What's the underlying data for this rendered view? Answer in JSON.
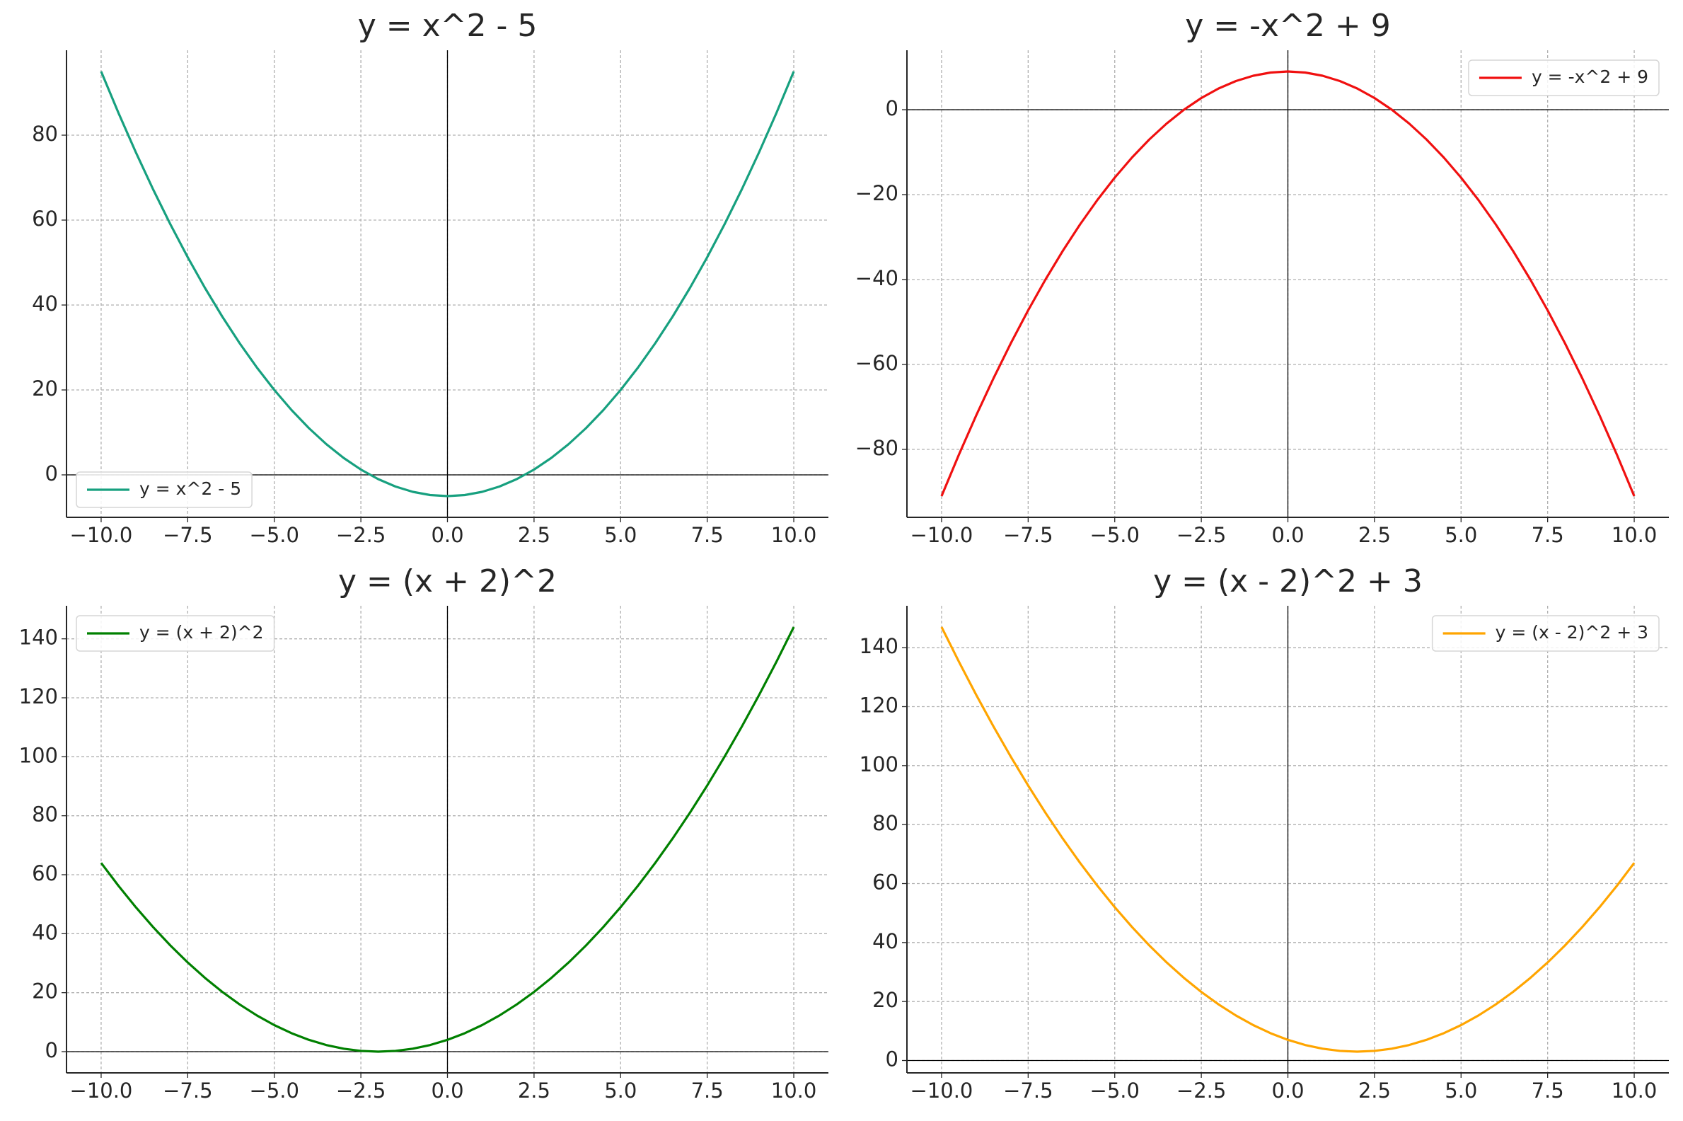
{
  "chart_data": [
    {
      "type": "line",
      "title": "y = x^2 - 5",
      "x": [
        -10,
        -9.5,
        -9,
        -8.5,
        -8,
        -7.5,
        -7,
        -6.5,
        -6,
        -5.5,
        -5,
        -4.5,
        -4,
        -3.5,
        -3,
        -2.5,
        -2,
        -1.5,
        -1,
        -0.5,
        0,
        0.5,
        1,
        1.5,
        2,
        2.5,
        3,
        3.5,
        4,
        4.5,
        5,
        5.5,
        6,
        6.5,
        7,
        7.5,
        8,
        8.5,
        9,
        9.5,
        10
      ],
      "series": [
        {
          "name": "y = x^2 - 5",
          "color": "#17a07f",
          "values": [
            95,
            85.25,
            76,
            67.25,
            59,
            51.25,
            44,
            37.25,
            31,
            25.25,
            20,
            15.25,
            11,
            7.25,
            4,
            1.25,
            -1,
            -2.75,
            -4,
            -4.75,
            -5,
            -4.75,
            -4,
            -2.75,
            -1,
            1.25,
            4,
            7.25,
            11,
            15.25,
            20,
            25.25,
            31,
            37.25,
            44,
            51.25,
            59,
            67.25,
            76,
            85.25,
            95
          ]
        }
      ],
      "xlim": [
        -11,
        11
      ],
      "ylim": [
        -10,
        100
      ],
      "xticks": [
        {
          "value": -10,
          "label": "−10.0"
        },
        {
          "value": -7.5,
          "label": "−7.5"
        },
        {
          "value": -5,
          "label": "−5.0"
        },
        {
          "value": -2.5,
          "label": "−2.5"
        },
        {
          "value": 0,
          "label": "0.0"
        },
        2.5,
        {
          "value": 5,
          "label": "5.0"
        },
        7.5,
        {
          "value": 10,
          "label": "10.0"
        }
      ],
      "yticks": [
        0,
        20,
        40,
        60,
        80
      ],
      "grid": true,
      "legend": "lower left"
    },
    {
      "type": "line",
      "title": "y = -x^2 + 9",
      "x": [
        -10,
        -9.5,
        -9,
        -8.5,
        -8,
        -7.5,
        -7,
        -6.5,
        -6,
        -5.5,
        -5,
        -4.5,
        -4,
        -3.5,
        -3,
        -2.5,
        -2,
        -1.5,
        -1,
        -0.5,
        0,
        0.5,
        1,
        1.5,
        2,
        2.5,
        3,
        3.5,
        4,
        4.5,
        5,
        5.5,
        6,
        6.5,
        7,
        7.5,
        8,
        8.5,
        9,
        9.5,
        10
      ],
      "series": [
        {
          "name": "y = -x^2 + 9",
          "color": "#f01010",
          "values": [
            -91,
            -81.25,
            -72,
            -63.25,
            -55,
            -47.25,
            -40,
            -33.25,
            -27,
            -21.25,
            -16,
            -11.25,
            -7,
            -3.25,
            0,
            2.75,
            5,
            6.75,
            8,
            8.75,
            9,
            8.75,
            8,
            6.75,
            5,
            2.75,
            0,
            -3.25,
            -7,
            -11.25,
            -16,
            -21.25,
            -27,
            -33.25,
            -40,
            -47.25,
            -55,
            -63.25,
            -72,
            -81.25,
            -91
          ]
        }
      ],
      "xlim": [
        -11,
        11
      ],
      "ylim": [
        -96,
        14
      ],
      "xticks": [
        {
          "value": -10,
          "label": "−10.0"
        },
        {
          "value": -7.5,
          "label": "−7.5"
        },
        {
          "value": -5,
          "label": "−5.0"
        },
        {
          "value": -2.5,
          "label": "−2.5"
        },
        {
          "value": 0,
          "label": "0.0"
        },
        2.5,
        {
          "value": 5,
          "label": "5.0"
        },
        7.5,
        {
          "value": 10,
          "label": "10.0"
        }
      ],
      "yticks": [
        {
          "value": -80,
          "label": "−80"
        },
        {
          "value": -60,
          "label": "−60"
        },
        {
          "value": -40,
          "label": "−40"
        },
        {
          "value": -20,
          "label": "−20"
        },
        0
      ],
      "grid": true,
      "legend": "upper right"
    },
    {
      "type": "line",
      "title": "y = (x + 2)^2",
      "x": [
        -10,
        -9.5,
        -9,
        -8.5,
        -8,
        -7.5,
        -7,
        -6.5,
        -6,
        -5.5,
        -5,
        -4.5,
        -4,
        -3.5,
        -3,
        -2.5,
        -2,
        -1.5,
        -1,
        -0.5,
        0,
        0.5,
        1,
        1.5,
        2,
        2.5,
        3,
        3.5,
        4,
        4.5,
        5,
        5.5,
        6,
        6.5,
        7,
        7.5,
        8,
        8.5,
        9,
        9.5,
        10
      ],
      "series": [
        {
          "name": "y = (x + 2)^2",
          "color": "#008000",
          "values": [
            64,
            56.25,
            49,
            42.25,
            36,
            30.25,
            25,
            20.25,
            16,
            12.25,
            9,
            6.25,
            4,
            2.25,
            1,
            0.25,
            0,
            0.25,
            1,
            2.25,
            4,
            6.25,
            9,
            12.25,
            16,
            20.25,
            25,
            30.25,
            36,
            42.25,
            49,
            56.25,
            64,
            72.25,
            81,
            90.25,
            100,
            110.25,
            121,
            132.25,
            144
          ]
        }
      ],
      "xlim": [
        -11,
        11
      ],
      "ylim": [
        -7.2,
        151.2
      ],
      "xticks": [
        {
          "value": -10,
          "label": "−10.0"
        },
        {
          "value": -7.5,
          "label": "−7.5"
        },
        {
          "value": -5,
          "label": "−5.0"
        },
        {
          "value": -2.5,
          "label": "−2.5"
        },
        {
          "value": 0,
          "label": "0.0"
        },
        2.5,
        {
          "value": 5,
          "label": "5.0"
        },
        7.5,
        {
          "value": 10,
          "label": "10.0"
        }
      ],
      "yticks": [
        0,
        20,
        40,
        60,
        80,
        100,
        120,
        140
      ],
      "grid": true,
      "legend": "upper left"
    },
    {
      "type": "line",
      "title": "y = (x - 2)^2 + 3",
      "x": [
        -10,
        -9.5,
        -9,
        -8.5,
        -8,
        -7.5,
        -7,
        -6.5,
        -6,
        -5.5,
        -5,
        -4.5,
        -4,
        -3.5,
        -3,
        -2.5,
        -2,
        -1.5,
        -1,
        -0.5,
        0,
        0.5,
        1,
        1.5,
        2,
        2.5,
        3,
        3.5,
        4,
        4.5,
        5,
        5.5,
        6,
        6.5,
        7,
        7.5,
        8,
        8.5,
        9,
        9.5,
        10
      ],
      "series": [
        {
          "name": "y = (x - 2)^2 + 3",
          "color": "#ffa500",
          "values": [
            147,
            135.25,
            124,
            113.25,
            103,
            93.25,
            84,
            75.25,
            67,
            59.25,
            52,
            45.25,
            39,
            33.25,
            28,
            23.25,
            19,
            15.25,
            12,
            9.25,
            7,
            5.25,
            4,
            3.25,
            3,
            3.25,
            4,
            5.25,
            7,
            9.25,
            12,
            15.25,
            19,
            23.25,
            28,
            33.25,
            39,
            45.25,
            52,
            59.25,
            67
          ]
        }
      ],
      "xlim": [
        -11,
        11
      ],
      "ylim": [
        -4.2,
        154.2
      ],
      "xticks": [
        {
          "value": -10,
          "label": "−10.0"
        },
        {
          "value": -7.5,
          "label": "−7.5"
        },
        {
          "value": -5,
          "label": "−5.0"
        },
        {
          "value": -2.5,
          "label": "−2.5"
        },
        {
          "value": 0,
          "label": "0.0"
        },
        2.5,
        {
          "value": 5,
          "label": "5.0"
        },
        7.5,
        {
          "value": 10,
          "label": "10.0"
        }
      ],
      "yticks": [
        0,
        20,
        40,
        60,
        80,
        100,
        120,
        140
      ],
      "grid": true,
      "legend": "upper right"
    }
  ]
}
